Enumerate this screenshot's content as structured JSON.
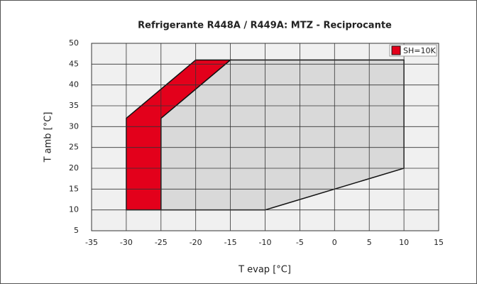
{
  "chart_data": {
    "type": "polygon",
    "title": "Refrigerante R448A / R449A: MTZ - Reciprocante",
    "x_label": "T evap [°C]",
    "y_label": "T amb [°C]",
    "xlim": [
      -35,
      15
    ],
    "xticks": [
      -35,
      -30,
      -25,
      -20,
      -15,
      -10,
      -5,
      0,
      5,
      10,
      15
    ],
    "ylim": [
      5,
      50
    ],
    "yticks": [
      5,
      10,
      15,
      20,
      25,
      30,
      35,
      40,
      45,
      50
    ],
    "grid": true,
    "legend": "upper right",
    "series": [
      {
        "color": "#d9d9d9",
        "x": [
          -25,
          -10,
          10,
          10,
          -15,
          -25
        ],
        "y": [
          10,
          10,
          20,
          46,
          46,
          32
        ]
      },
      {
        "name": "SH=10K",
        "color": "#e3001b",
        "x": [
          -30,
          -25,
          -25,
          -15,
          -20,
          -30
        ],
        "y": [
          10,
          10,
          32,
          46,
          46,
          32
        ]
      }
    ]
  }
}
